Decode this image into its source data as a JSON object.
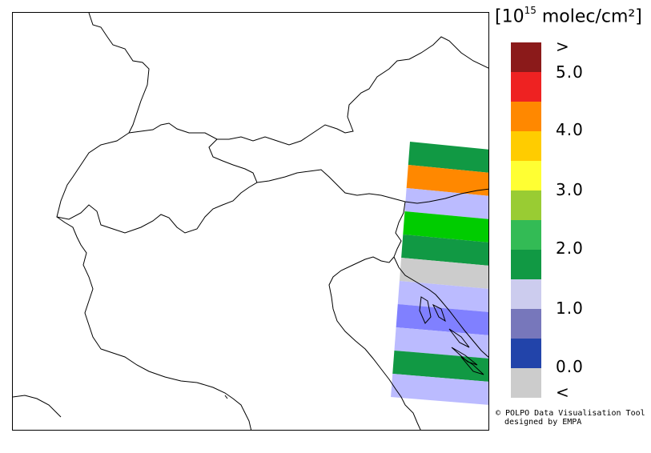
{
  "legend": {
    "unit_prefix": "[10",
    "unit_exp": "15",
    "unit_suffix": " molec/cm²]",
    "swatches": [
      {
        "color": "#8b1a1a"
      },
      {
        "color": "#ee2222"
      },
      {
        "color": "#ff8800"
      },
      {
        "color": "#ffcc00"
      },
      {
        "color": "#ffff33"
      },
      {
        "color": "#99cc33"
      },
      {
        "color": "#33bb55"
      },
      {
        "color": "#119944"
      },
      {
        "color": "#ccccee"
      },
      {
        "color": "#7777bb"
      },
      {
        "color": "#2244aa"
      },
      {
        "color": "#cccccc"
      }
    ],
    "labels": [
      ">",
      "5.0",
      "4.0",
      "3.0",
      "2.0",
      "1.0",
      "0.0",
      "<"
    ]
  },
  "swath_colors": [
    "#119944",
    "#ff8800",
    "#bbbbff",
    "#00cc00",
    "#119944",
    "#cccccc",
    "#bbbbff",
    "#8080ff",
    "#bbbbff",
    "#119944",
    "#bbbbff"
  ],
  "credit": {
    "line1": "© POLPO Data Visualisation Tool",
    "line2": "designed by EMPA"
  }
}
